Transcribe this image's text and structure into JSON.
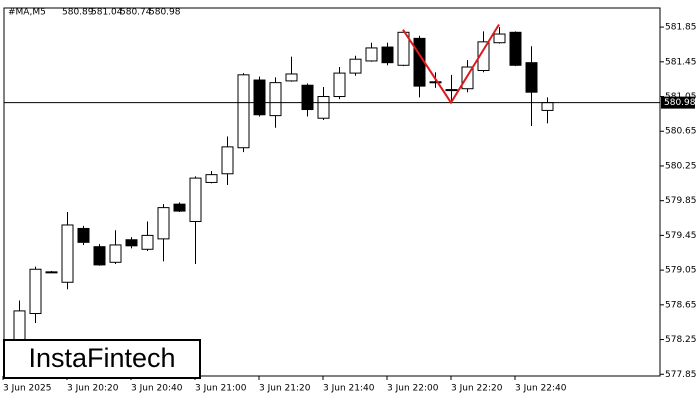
{
  "chart_data": {
    "type": "candlestick",
    "title": "#MA,M5",
    "logo": "InstaFintech",
    "categories": [
      "3 Jun 2025",
      null,
      null,
      null,
      "3 Jun 20:20",
      null,
      null,
      null,
      "3 Jun 20:40",
      null,
      null,
      null,
      "3 Jun 21:00",
      null,
      null,
      null,
      "3 Jun 21:20",
      null,
      null,
      null,
      "3 Jun 21:40",
      null,
      null,
      null,
      "3 Jun 22:00",
      null,
      null,
      null,
      "3 Jun 22:20",
      null,
      null,
      null,
      "3 Jun 22:40",
      null,
      null
    ],
    "open": [
      null,
      578.15,
      578.55,
      579.03,
      578.91,
      579.53,
      579.32,
      579.14,
      579.4,
      579.29,
      579.41,
      579.81,
      579.61,
      580.06,
      580.16,
      580.46,
      581.24,
      580.83,
      581.23,
      581.18,
      580.8,
      581.05,
      581.32,
      581.46,
      581.62,
      581.41,
      581.72,
      581.22,
      581.13,
      581.14,
      581.35,
      581.67,
      581.79,
      581.44,
      580.89
    ],
    "high": [
      null,
      578.7,
      579.09,
      579.04,
      579.72,
      579.56,
      579.35,
      579.51,
      579.43,
      579.61,
      579.81,
      579.83,
      580.13,
      580.19,
      580.59,
      581.32,
      581.28,
      581.27,
      581.51,
      581.2,
      581.16,
      581.39,
      581.52,
      581.67,
      581.67,
      581.82,
      581.75,
      581.33,
      581.3,
      581.47,
      581.8,
      581.85,
      581.8,
      581.63,
      581.04
    ],
    "low": [
      null,
      578.09,
      578.44,
      579.02,
      578.83,
      579.34,
      579.1,
      579.12,
      579.3,
      579.27,
      579.15,
      579.72,
      579.12,
      580.05,
      580.03,
      580.41,
      580.82,
      580.69,
      581.22,
      580.82,
      580.78,
      581.02,
      581.29,
      581.45,
      581.41,
      581.4,
      581.04,
      581.15,
      580.99,
      581.1,
      581.33,
      581.66,
      581.4,
      580.71,
      580.74
    ],
    "close": [
      null,
      578.58,
      579.06,
      579.03,
      579.57,
      579.37,
      579.11,
      579.34,
      579.33,
      579.45,
      579.77,
      579.73,
      580.11,
      580.15,
      580.47,
      581.3,
      580.84,
      581.21,
      581.31,
      580.9,
      581.05,
      581.32,
      581.48,
      581.61,
      581.44,
      581.79,
      581.17,
      581.21,
      581.12,
      581.39,
      581.68,
      581.77,
      581.41,
      581.1,
      580.98
    ],
    "bull_color": "#ffffff",
    "bear_color": "#000000",
    "pattern": {
      "color": "#e0191e",
      "x": [
        25,
        28,
        31
      ],
      "y": [
        581.82,
        580.98,
        581.88
      ]
    },
    "ylim": [
      577.83,
      582.07
    ],
    "yticks": [
      581.85,
      581.45,
      581.05,
      580.65,
      580.25,
      579.85,
      579.45,
      579.05,
      578.65,
      578.25,
      577.85
    ]
  }
}
